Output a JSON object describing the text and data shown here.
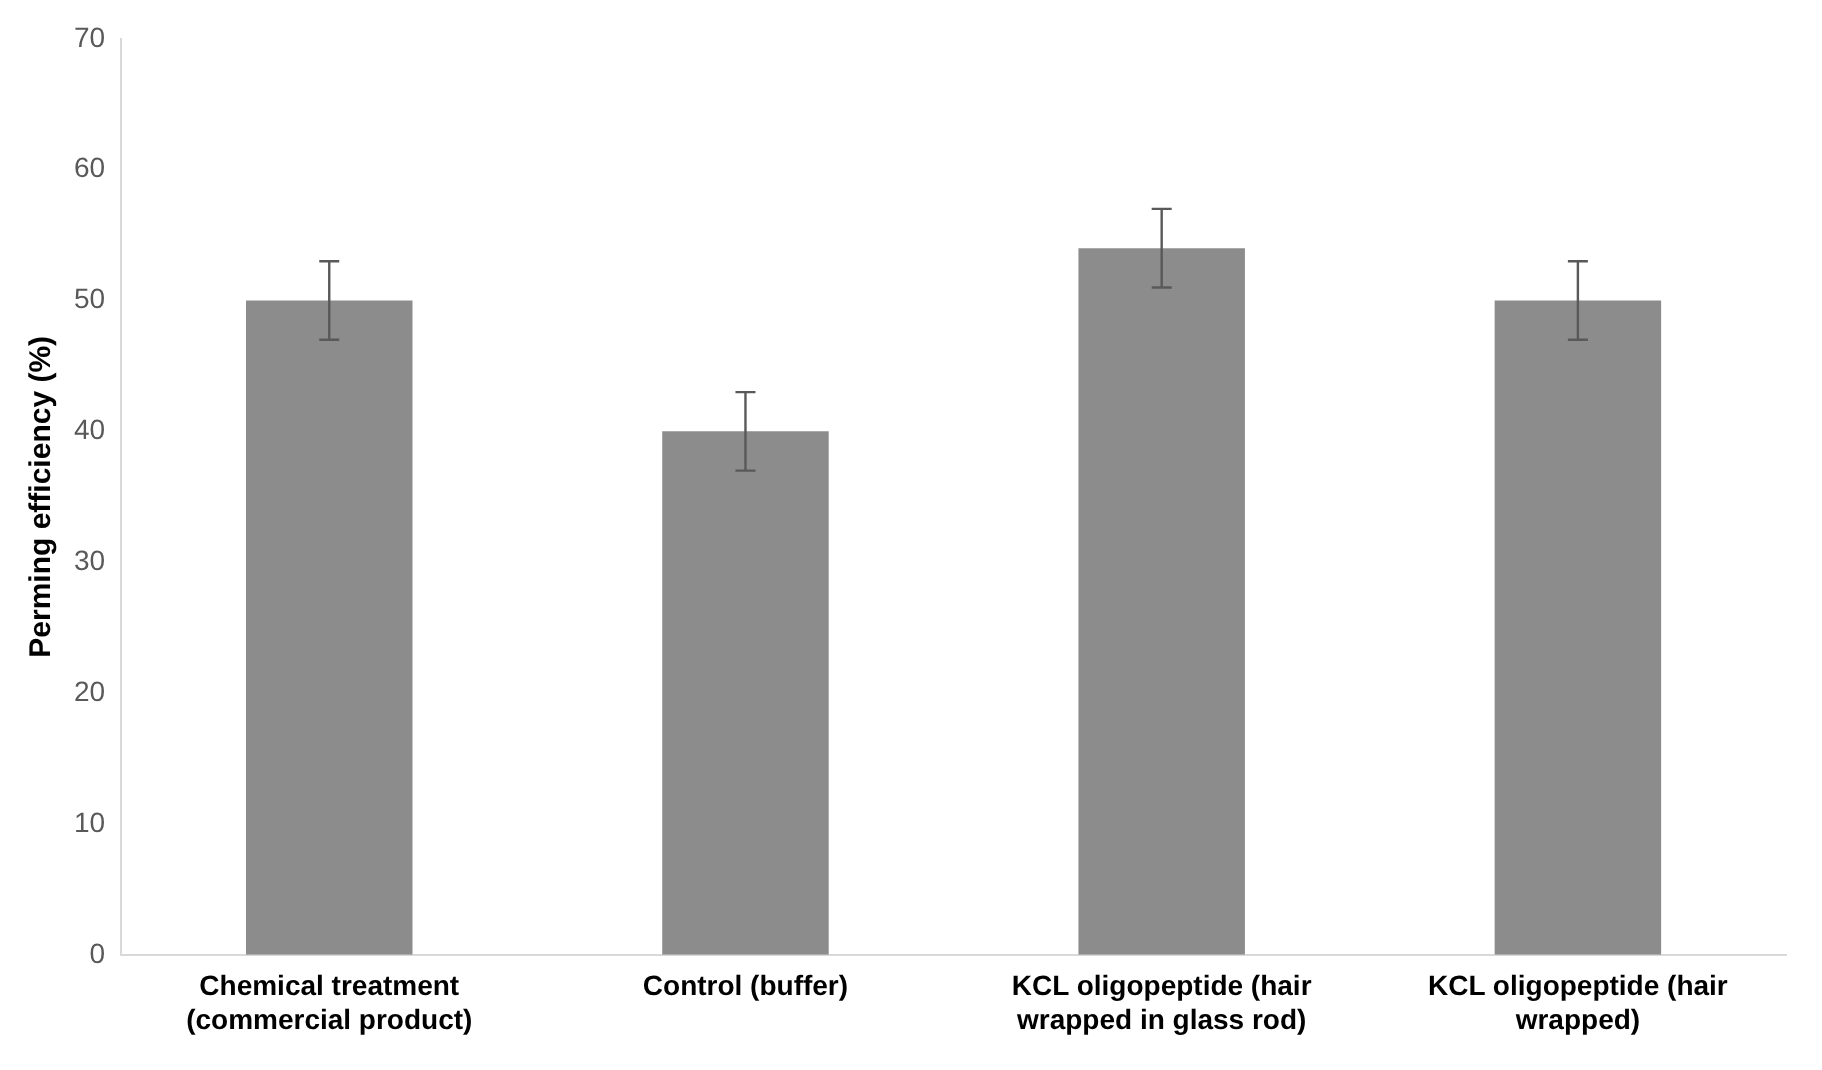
{
  "chart_data": {
    "type": "bar",
    "ylabel": "Perming efficiency (%)",
    "categories": [
      "Chemical treatment (commercial product)",
      "Control (buffer)",
      "KCL oligopeptide (hair wrapped in glass rod)",
      "KCL oligopeptide (hair wrapped)"
    ],
    "values": [
      50,
      40,
      54,
      50
    ],
    "errors": [
      3,
      3,
      3,
      3
    ],
    "color": "#8c8c8c",
    "ylim": [
      0,
      70
    ],
    "yticks": [
      0,
      10,
      20,
      30,
      40,
      50,
      60,
      70
    ],
    "grid": false,
    "legend": false
  }
}
